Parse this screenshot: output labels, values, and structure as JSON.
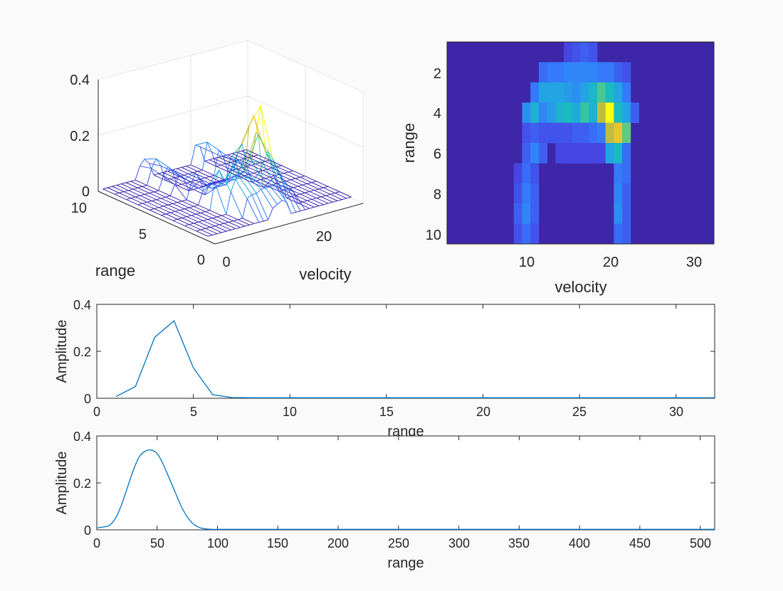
{
  "chart_data": [
    {
      "type": "surface",
      "title": "",
      "xlabel": "velocity",
      "ylabel": "range",
      "zlabel": "",
      "xlim": [
        0,
        32
      ],
      "ylim": [
        0,
        10
      ],
      "zlim": [
        0,
        0.4
      ],
      "xticks": [
        "0",
        "20"
      ],
      "yticks": [
        "0",
        "5",
        "10"
      ],
      "zticks": [
        "0",
        "0.2",
        "0.4"
      ],
      "grid": true,
      "note": "mesh surface of the same range-velocity map shown in the heatmap"
    },
    {
      "type": "heatmap",
      "title": "",
      "xlabel": "velocity",
      "ylabel": "range",
      "xlim": [
        0.5,
        32.5
      ],
      "ylim": [
        0.5,
        10.5
      ],
      "xticks": [
        "10",
        "20",
        "30"
      ],
      "yticks": [
        "2",
        "4",
        "6",
        "8",
        "10"
      ],
      "cmax": 0.33,
      "cells": [
        [
          1,
          15,
          0.04
        ],
        [
          1,
          16,
          0.05
        ],
        [
          1,
          17,
          0.06
        ],
        [
          1,
          18,
          0.05
        ],
        [
          2,
          12,
          0.07
        ],
        [
          2,
          13,
          0.08
        ],
        [
          2,
          14,
          0.08
        ],
        [
          2,
          15,
          0.09
        ],
        [
          2,
          16,
          0.09
        ],
        [
          2,
          17,
          0.09
        ],
        [
          2,
          18,
          0.09
        ],
        [
          2,
          19,
          0.08
        ],
        [
          2,
          20,
          0.08
        ],
        [
          2,
          21,
          0.06
        ],
        [
          2,
          22,
          0.05
        ],
        [
          3,
          11,
          0.08
        ],
        [
          3,
          12,
          0.12
        ],
        [
          3,
          13,
          0.12
        ],
        [
          3,
          14,
          0.12
        ],
        [
          3,
          15,
          0.11
        ],
        [
          3,
          16,
          0.1
        ],
        [
          3,
          17,
          0.12
        ],
        [
          3,
          18,
          0.15
        ],
        [
          3,
          19,
          0.19
        ],
        [
          3,
          20,
          0.16
        ],
        [
          3,
          21,
          0.12
        ],
        [
          3,
          22,
          0.08
        ],
        [
          4,
          10,
          0.1
        ],
        [
          4,
          11,
          0.14
        ],
        [
          4,
          12,
          0.09
        ],
        [
          4,
          13,
          0.11
        ],
        [
          4,
          14,
          0.14
        ],
        [
          4,
          15,
          0.16
        ],
        [
          4,
          16,
          0.13
        ],
        [
          4,
          17,
          0.18
        ],
        [
          4,
          18,
          0.14
        ],
        [
          4,
          19,
          0.24
        ],
        [
          4,
          20,
          0.33
        ],
        [
          4,
          21,
          0.16
        ],
        [
          4,
          22,
          0.12
        ],
        [
          4,
          23,
          0.06
        ],
        [
          5,
          10,
          0.05
        ],
        [
          5,
          11,
          0.06
        ],
        [
          5,
          12,
          0.05
        ],
        [
          5,
          13,
          0.05
        ],
        [
          5,
          14,
          0.05
        ],
        [
          5,
          15,
          0.05
        ],
        [
          5,
          16,
          0.06
        ],
        [
          5,
          17,
          0.06
        ],
        [
          5,
          18,
          0.07
        ],
        [
          5,
          19,
          0.08
        ],
        [
          5,
          20,
          0.24
        ],
        [
          5,
          21,
          0.27
        ],
        [
          5,
          22,
          0.2
        ],
        [
          6,
          10,
          0.06
        ],
        [
          6,
          11,
          0.09
        ],
        [
          6,
          12,
          0.06
        ],
        [
          6,
          14,
          0.04
        ],
        [
          6,
          15,
          0.04
        ],
        [
          6,
          16,
          0.04
        ],
        [
          6,
          17,
          0.04
        ],
        [
          6,
          18,
          0.04
        ],
        [
          6,
          19,
          0.04
        ],
        [
          6,
          20,
          0.12
        ],
        [
          6,
          21,
          0.15
        ],
        [
          6,
          22,
          0.07
        ],
        [
          7,
          9,
          0.04
        ],
        [
          7,
          10,
          0.07
        ],
        [
          7,
          11,
          0.05
        ],
        [
          7,
          21,
          0.08
        ],
        [
          7,
          22,
          0.07
        ],
        [
          8,
          9,
          0.05
        ],
        [
          8,
          10,
          0.08
        ],
        [
          8,
          11,
          0.06
        ],
        [
          8,
          21,
          0.09
        ],
        [
          8,
          22,
          0.06
        ],
        [
          9,
          9,
          0.06
        ],
        [
          9,
          10,
          0.09
        ],
        [
          9,
          11,
          0.06
        ],
        [
          9,
          21,
          0.1
        ],
        [
          9,
          22,
          0.06
        ],
        [
          10,
          9,
          0.05
        ],
        [
          10,
          10,
          0.07
        ],
        [
          10,
          11,
          0.05
        ],
        [
          10,
          21,
          0.07
        ],
        [
          10,
          22,
          0.06
        ]
      ]
    },
    {
      "type": "line",
      "title": "",
      "xlabel": "range",
      "ylabel": "Amplitude",
      "xlim": [
        0,
        32
      ],
      "ylim": [
        0,
        0.4
      ],
      "xticks": [
        "0",
        "5",
        "10",
        "15",
        "20",
        "25",
        "30"
      ],
      "yticks": [
        "0",
        "0.2",
        "0.4"
      ],
      "x": [
        1,
        2,
        3,
        4,
        5,
        6,
        7,
        8,
        9,
        10,
        11,
        12,
        13,
        14,
        15,
        16,
        17,
        18,
        19,
        20,
        21,
        22,
        23,
        24,
        25,
        26,
        27,
        28,
        29,
        30,
        31,
        32
      ],
      "series": [
        {
          "name": "Amplitude",
          "values": [
            0.008,
            0.05,
            0.26,
            0.33,
            0.13,
            0.015,
            0.003,
            0.002,
            0.002,
            0.002,
            0.002,
            0.002,
            0.002,
            0.002,
            0.002,
            0.002,
            0.002,
            0.002,
            0.002,
            0.002,
            0.002,
            0.002,
            0.002,
            0.002,
            0.002,
            0.002,
            0.002,
            0.002,
            0.002,
            0.002,
            0.002,
            0.002
          ]
        }
      ]
    },
    {
      "type": "line",
      "title": "",
      "xlabel": "range",
      "ylabel": "Amplitude",
      "xlim": [
        0,
        512
      ],
      "ylim": [
        0,
        0.4
      ],
      "xticks": [
        "0",
        "50",
        "100",
        "150",
        "200",
        "250",
        "300",
        "350",
        "400",
        "450",
        "500"
      ],
      "yticks": [
        "0",
        "0.2",
        "0.4"
      ],
      "x": [
        0,
        5,
        10,
        15,
        20,
        25,
        30,
        35,
        40,
        45,
        50,
        55,
        60,
        65,
        70,
        75,
        80,
        85,
        90,
        95,
        100,
        110,
        120,
        150,
        200,
        300,
        400,
        512
      ],
      "series": [
        {
          "name": "Amplitude",
          "values": [
            0.008,
            0.012,
            0.018,
            0.045,
            0.1,
            0.175,
            0.25,
            0.31,
            0.335,
            0.34,
            0.325,
            0.28,
            0.22,
            0.16,
            0.1,
            0.055,
            0.025,
            0.01,
            0.004,
            0.002,
            0.002,
            0.002,
            0.002,
            0.002,
            0.002,
            0.002,
            0.002,
            0.002
          ]
        }
      ]
    }
  ]
}
